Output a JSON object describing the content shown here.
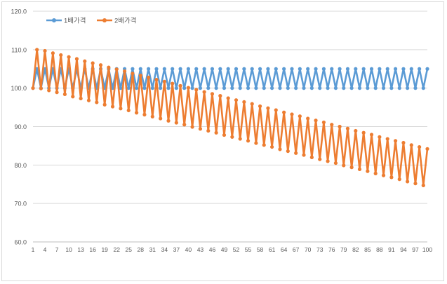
{
  "chart_data": {
    "type": "line",
    "title": "",
    "xlabel": "",
    "ylabel": "",
    "ylim": [
      60,
      120
    ],
    "y_ticks": [
      "60.0",
      "70.0",
      "80.0",
      "90.0",
      "100.0",
      "110.0",
      "120.0"
    ],
    "grid": "horizontal",
    "legend_position": "top-left",
    "x": [
      1,
      2,
      3,
      4,
      5,
      6,
      7,
      8,
      9,
      10,
      11,
      12,
      13,
      14,
      15,
      16,
      17,
      18,
      19,
      20,
      21,
      22,
      23,
      24,
      25,
      26,
      27,
      28,
      29,
      30,
      31,
      32,
      33,
      34,
      35,
      36,
      37,
      38,
      39,
      40,
      41,
      42,
      43,
      44,
      45,
      46,
      47,
      48,
      49,
      50,
      51,
      52,
      53,
      54,
      55,
      56,
      57,
      58,
      59,
      60,
      61,
      62,
      63,
      64,
      65,
      66,
      67,
      68,
      69,
      70,
      71,
      72,
      73,
      74,
      75,
      76,
      77,
      78,
      79,
      80,
      81,
      82,
      83,
      84,
      85,
      86,
      87,
      88,
      89,
      90,
      91,
      92,
      93,
      94,
      95,
      96,
      97,
      98,
      99,
      100
    ],
    "x_tick_labels": [
      "1",
      "4",
      "7",
      "10",
      "13",
      "16",
      "19",
      "22",
      "25",
      "28",
      "31",
      "34",
      "37",
      "40",
      "43",
      "46",
      "49",
      "52",
      "55",
      "58",
      "61",
      "64",
      "67",
      "70",
      "73",
      "76",
      "79",
      "82",
      "85",
      "88",
      "91",
      "94",
      "97",
      "100"
    ],
    "series": [
      {
        "name": "1배가격",
        "color": "#5b9bd5",
        "values": [
          100.0,
          105.0,
          100.0,
          105.0,
          100.0,
          105.0,
          100.0,
          105.0,
          100.0,
          105.0,
          100.0,
          105.0,
          100.0,
          105.0,
          100.0,
          105.0,
          100.0,
          105.0,
          100.0,
          105.0,
          100.0,
          105.0,
          100.0,
          105.0,
          100.0,
          105.0,
          100.0,
          105.0,
          100.0,
          105.0,
          100.0,
          105.0,
          100.0,
          105.0,
          100.0,
          105.0,
          100.0,
          105.0,
          100.0,
          105.0,
          100.0,
          105.0,
          100.0,
          105.0,
          100.0,
          105.0,
          100.0,
          105.0,
          100.0,
          105.0,
          100.0,
          105.0,
          100.0,
          105.0,
          100.0,
          105.0,
          100.0,
          105.0,
          100.0,
          105.0,
          100.0,
          105.0,
          100.0,
          105.0,
          100.0,
          105.0,
          100.0,
          105.0,
          100.0,
          105.0,
          100.0,
          105.0,
          100.0,
          105.0,
          100.0,
          105.0,
          100.0,
          105.0,
          100.0,
          105.0,
          100.0,
          105.0,
          100.0,
          105.0,
          100.0,
          105.0,
          100.0,
          105.0,
          100.0,
          105.0,
          100.0,
          105.0,
          100.0,
          105.0,
          100.0,
          105.0,
          100.0,
          105.0,
          100.0,
          105.0
        ]
      },
      {
        "name": "2배가격",
        "color": "#ed7d31",
        "values": [
          100.0,
          110.0,
          99.9,
          109.7,
          99.4,
          109.1,
          98.9,
          108.6,
          98.4,
          108.1,
          97.8,
          107.6,
          97.3,
          107.0,
          96.8,
          106.5,
          96.3,
          106.0,
          95.7,
          105.4,
          95.2,
          104.9,
          94.7,
          104.4,
          94.2,
          103.8,
          93.6,
          103.3,
          93.1,
          102.8,
          92.6,
          102.2,
          92.1,
          101.7,
          91.5,
          101.2,
          91.0,
          100.6,
          90.5,
          100.1,
          89.9,
          99.6,
          89.4,
          99.0,
          88.9,
          98.5,
          88.4,
          98.0,
          87.8,
          97.4,
          87.3,
          96.9,
          86.8,
          96.4,
          86.3,
          95.9,
          85.7,
          95.3,
          85.2,
          94.8,
          84.7,
          94.3,
          84.1,
          93.7,
          83.6,
          93.2,
          83.1,
          92.7,
          82.6,
          92.1,
          82.0,
          91.6,
          81.5,
          91.1,
          81.0,
          90.5,
          80.5,
          90.0,
          79.9,
          89.5,
          79.4,
          88.9,
          78.9,
          88.4,
          78.4,
          87.9,
          77.8,
          87.3,
          77.3,
          86.8,
          76.8,
          86.3,
          76.3,
          85.8,
          75.7,
          85.2,
          75.2,
          84.7,
          74.7,
          84.2
        ]
      }
    ]
  }
}
